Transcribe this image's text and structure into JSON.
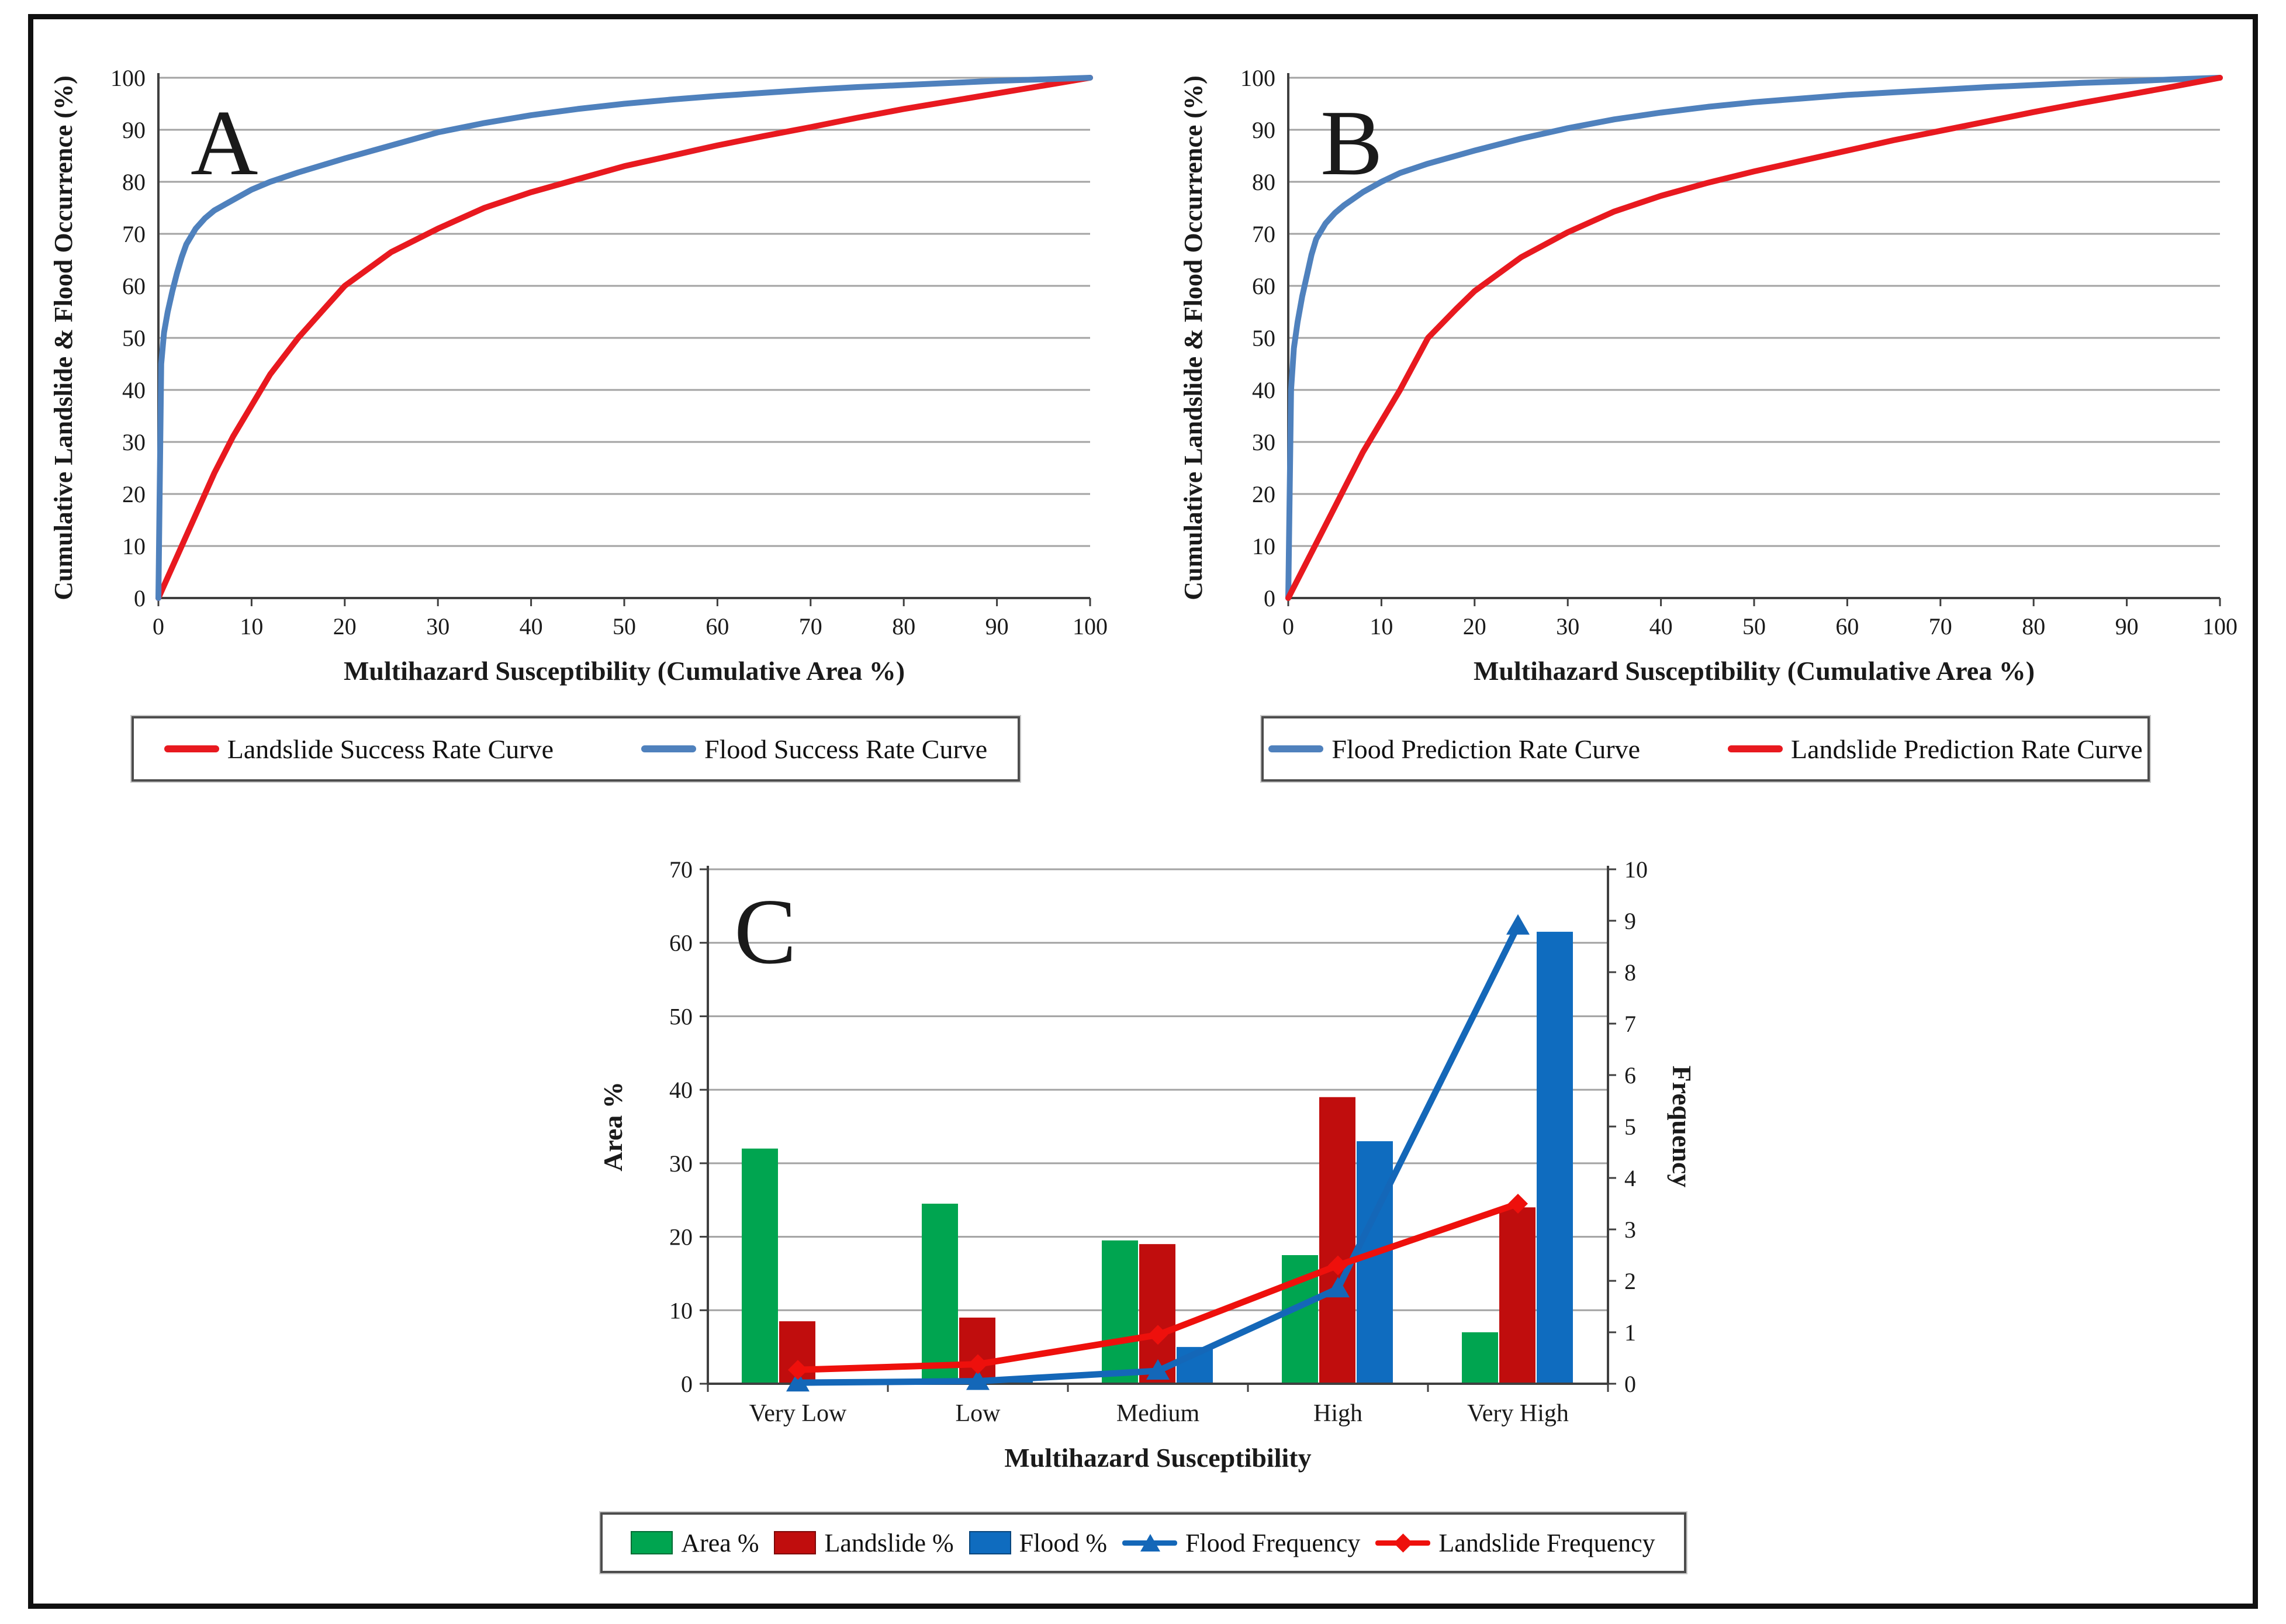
{
  "figure": {
    "background": "#ffffff",
    "frame_color": "#101010",
    "grid_color": "#a3a3a3",
    "axis_color": "#3f3f3f"
  },
  "colors": {
    "steel_blue_curve": "#4f81bd",
    "bright_red_curve": "#e8191f",
    "green_bar": "#00a550",
    "dark_red_bar": "#c00d0d",
    "blue_bar": "#0f6cbf",
    "flood_freq_line": "#1467b8",
    "landslide_freq_line": "#ee100c"
  },
  "chart_data": [
    {
      "id": "chart-a",
      "type": "line",
      "panel_letter": "A",
      "xlabel": "Multihazard Susceptibility (Cumulative Area %)",
      "ylabel": "Cumulative Landslide & Flood Occurrence (%)",
      "xlim": [
        0,
        100
      ],
      "ylim": [
        0,
        100
      ],
      "xticks": [
        0,
        10,
        20,
        30,
        40,
        50,
        60,
        70,
        80,
        90,
        100
      ],
      "yticks": [
        0,
        10,
        20,
        30,
        40,
        50,
        60,
        70,
        80,
        90,
        100
      ],
      "grid": "horizontal",
      "legend_position": "below",
      "series": [
        {
          "name": "Landslide Success Rate Curve",
          "color": "#e8191f",
          "points": [
            [
              0,
              0
            ],
            [
              2,
              8
            ],
            [
              4,
              16
            ],
            [
              6,
              24
            ],
            [
              8,
              31
            ],
            [
              10,
              37
            ],
            [
              12,
              43
            ],
            [
              15,
              50
            ],
            [
              18,
              56
            ],
            [
              20,
              60
            ],
            [
              25,
              66.5
            ],
            [
              30,
              71
            ],
            [
              35,
              75
            ],
            [
              40,
              78
            ],
            [
              45,
              80.5
            ],
            [
              50,
              83
            ],
            [
              55,
              85
            ],
            [
              60,
              87
            ],
            [
              65,
              88.8
            ],
            [
              70,
              90.5
            ],
            [
              75,
              92.3
            ],
            [
              80,
              94
            ],
            [
              85,
              95.5
            ],
            [
              90,
              97
            ],
            [
              95,
              98.5
            ],
            [
              100,
              100
            ]
          ]
        },
        {
          "name": "Flood Success Rate Curve",
          "color": "#4f81bd",
          "points": [
            [
              0,
              0
            ],
            [
              0.3,
              45
            ],
            [
              0.6,
              51
            ],
            [
              1,
              55
            ],
            [
              1.5,
              59
            ],
            [
              2,
              62.5
            ],
            [
              2.5,
              65.5
            ],
            [
              3,
              68
            ],
            [
              4,
              71
            ],
            [
              5,
              73
            ],
            [
              6,
              74.5
            ],
            [
              8,
              76.5
            ],
            [
              10,
              78.5
            ],
            [
              12,
              80
            ],
            [
              15,
              81.8
            ],
            [
              20,
              84.5
            ],
            [
              25,
              87
            ],
            [
              30,
              89.5
            ],
            [
              35,
              91.3
            ],
            [
              40,
              92.8
            ],
            [
              45,
              94
            ],
            [
              50,
              95
            ],
            [
              55,
              95.8
            ],
            [
              60,
              96.5
            ],
            [
              65,
              97.1
            ],
            [
              70,
              97.7
            ],
            [
              75,
              98.2
            ],
            [
              80,
              98.6
            ],
            [
              85,
              99
            ],
            [
              90,
              99.4
            ],
            [
              95,
              99.7
            ],
            [
              100,
              100
            ]
          ]
        }
      ]
    },
    {
      "id": "chart-b",
      "type": "line",
      "panel_letter": "B",
      "xlabel": "Multihazard Susceptibility (Cumulative Area %)",
      "ylabel": "Cumulative Landslide & Flood Occurrence (%)",
      "xlim": [
        0,
        100
      ],
      "ylim": [
        0,
        100
      ],
      "xticks": [
        0,
        10,
        20,
        30,
        40,
        50,
        60,
        70,
        80,
        90,
        100
      ],
      "yticks": [
        0,
        10,
        20,
        30,
        40,
        50,
        60,
        70,
        80,
        90,
        100
      ],
      "grid": "horizontal",
      "legend_position": "below",
      "series": [
        {
          "name": "Flood Prediction Rate Curve",
          "color": "#4f81bd",
          "points": [
            [
              0,
              0
            ],
            [
              0.3,
              40
            ],
            [
              0.6,
              48
            ],
            [
              1,
              53
            ],
            [
              1.5,
              58
            ],
            [
              2,
              62
            ],
            [
              2.5,
              66
            ],
            [
              3,
              69
            ],
            [
              4,
              72
            ],
            [
              5,
              74
            ],
            [
              6,
              75.5
            ],
            [
              8,
              78
            ],
            [
              10,
              80
            ],
            [
              12,
              81.7
            ],
            [
              15,
              83.5
            ],
            [
              20,
              86
            ],
            [
              25,
              88.3
            ],
            [
              30,
              90.3
            ],
            [
              35,
              92
            ],
            [
              40,
              93.3
            ],
            [
              45,
              94.4
            ],
            [
              50,
              95.3
            ],
            [
              55,
              96
            ],
            [
              60,
              96.7
            ],
            [
              65,
              97.2
            ],
            [
              70,
              97.7
            ],
            [
              75,
              98.2
            ],
            [
              80,
              98.6
            ],
            [
              85,
              99
            ],
            [
              90,
              99.3
            ],
            [
              95,
              99.7
            ],
            [
              100,
              100
            ]
          ]
        },
        {
          "name": "Landslide Prediction Rate Curve",
          "color": "#e8191f",
          "points": [
            [
              0,
              0
            ],
            [
              2,
              7
            ],
            [
              4,
              14
            ],
            [
              6,
              21
            ],
            [
              8,
              28
            ],
            [
              10,
              34
            ],
            [
              12,
              40
            ],
            [
              15,
              50
            ],
            [
              18,
              55.5
            ],
            [
              20,
              59
            ],
            [
              25,
              65.5
            ],
            [
              30,
              70.3
            ],
            [
              35,
              74.3
            ],
            [
              40,
              77.3
            ],
            [
              45,
              79.8
            ],
            [
              50,
              82
            ],
            [
              55,
              84
            ],
            [
              60,
              86
            ],
            [
              65,
              88
            ],
            [
              70,
              89.8
            ],
            [
              75,
              91.6
            ],
            [
              80,
              93.4
            ],
            [
              85,
              95.1
            ],
            [
              90,
              96.7
            ],
            [
              95,
              98.3
            ],
            [
              100,
              100
            ]
          ]
        }
      ]
    },
    {
      "id": "chart-c",
      "type": "bar-line-combo",
      "panel_letter": "C",
      "xlabel": "Multihazard  Susceptibility",
      "categories": [
        "Very Low",
        "Low",
        "Medium",
        "High",
        "Very High"
      ],
      "left_axis": {
        "label": "Area %",
        "min": 0,
        "max": 70,
        "step": 10
      },
      "right_axis": {
        "label": "Frequency",
        "min": 0,
        "max": 10,
        "step": 1
      },
      "grid": "horizontal",
      "legend_position": "below",
      "bar_series": [
        {
          "name": "Area %",
          "color": "#00a550",
          "axis": "left",
          "values": [
            32,
            24.5,
            19.5,
            17.5,
            7
          ]
        },
        {
          "name": "Landslide %",
          "color": "#c00d0d",
          "axis": "left",
          "values": [
            8.5,
            9,
            19,
            39,
            24
          ]
        },
        {
          "name": "Flood %",
          "color": "#0f6cbf",
          "axis": "left",
          "values": [
            0.15,
            0.4,
            5,
            33,
            61.5
          ]
        }
      ],
      "line_series": [
        {
          "name": "Flood Frequency",
          "color": "#1467b8",
          "marker": "triangle",
          "axis": "right",
          "values": [
            0.02,
            0.05,
            0.25,
            1.85,
            8.9
          ]
        },
        {
          "name": "Landslide Frequency",
          "color": "#ee100c",
          "marker": "diamond",
          "axis": "right",
          "values": [
            0.27,
            0.38,
            0.95,
            2.3,
            3.5
          ]
        }
      ]
    }
  ]
}
